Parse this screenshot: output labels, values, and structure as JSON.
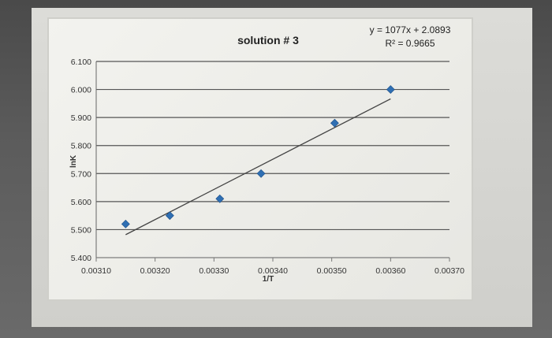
{
  "chart_data": {
    "type": "scatter",
    "title": "solution # 3",
    "xlabel": "1/T",
    "ylabel": "lnK",
    "trendline": {
      "equation": "y = 1077x + 2.0893",
      "r_squared": "R² = 0.9665",
      "slope": 1077,
      "intercept": 2.0893
    },
    "xlim": [
      0.0031,
      0.0037
    ],
    "ylim": [
      5.4,
      6.1
    ],
    "x_tick_labels": [
      "0.00310",
      "0.00320",
      "0.00330",
      "0.00340",
      "0.00350",
      "0.00360",
      "0.00370"
    ],
    "y_tick_labels": [
      "5.400",
      "5.500",
      "5.600",
      "5.700",
      "5.800",
      "5.900",
      "6.000",
      "6.100"
    ],
    "x_ticks": [
      0.0031,
      0.0032,
      0.0033,
      0.0034,
      0.0035,
      0.0036,
      0.0037
    ],
    "y_ticks": [
      5.4,
      5.5,
      5.6,
      5.7,
      5.8,
      5.9,
      6.0,
      6.1
    ],
    "grid": "horizontal",
    "marker_color": "#2f6fb3",
    "points": [
      {
        "x": 0.00315,
        "y": 5.52
      },
      {
        "x": 0.003225,
        "y": 5.55
      },
      {
        "x": 0.00331,
        "y": 5.61
      },
      {
        "x": 0.00338,
        "y": 5.7
      },
      {
        "x": 0.003505,
        "y": 5.88
      },
      {
        "x": 0.0036,
        "y": 6.0
      }
    ],
    "fit_line": {
      "x_start": 0.00315,
      "x_end": 0.0036
    }
  }
}
